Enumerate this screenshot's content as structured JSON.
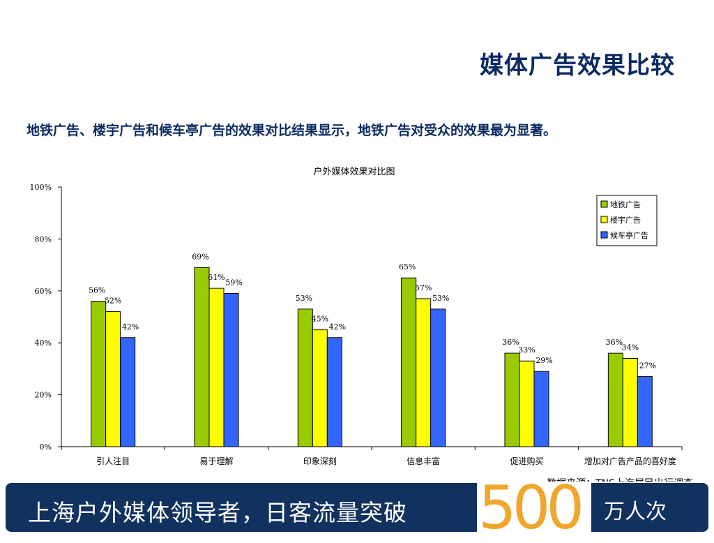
{
  "page": {
    "title": "媒体广告效果比较",
    "subtitle": "地铁广告、楼宇广告和候车亭广告的效果对比结果显示，地铁广告对受众的效果最为显著。",
    "source": "数据来源：TNS上海居民出行调查"
  },
  "banner": {
    "text": "上海户外媒体领导者，日客流量突破",
    "number": "500",
    "unit": "万人次",
    "colors": {
      "background": "#11315f",
      "number": "#f0a62a"
    }
  },
  "chart_data": {
    "type": "bar",
    "title": "户外媒体效果对比图",
    "xlabel": "",
    "ylabel": "",
    "ylim": [
      0,
      100
    ],
    "yticks": [
      "0%",
      "20%",
      "40%",
      "60%",
      "80%",
      "100%"
    ],
    "grid": false,
    "legend_position": "top-right",
    "categories": [
      "引人注目",
      "易于理解",
      "印象深刻",
      "信息丰富",
      "促进购买",
      "增加对广告产品的喜好度"
    ],
    "series": [
      {
        "name": "地铁广告",
        "color": "#99cc00",
        "values": [
          56,
          69,
          53,
          65,
          36,
          36
        ]
      },
      {
        "name": "楼宇广告",
        "color": "#ffff00",
        "values": [
          52,
          61,
          45,
          57,
          33,
          34
        ]
      },
      {
        "name": "候车亭广告",
        "color": "#3366ff",
        "values": [
          42,
          59,
          42,
          53,
          29,
          27
        ]
      }
    ]
  }
}
